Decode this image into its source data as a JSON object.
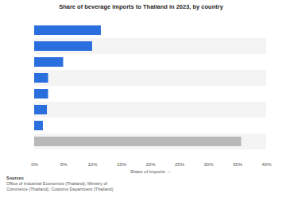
{
  "chart_data": {
    "type": "bar",
    "orientation": "horizontal",
    "title": "Share of beverage imports to Thailand in 2023, by country",
    "categories": [
      null,
      null,
      null,
      null,
      null,
      null,
      null,
      null
    ],
    "values": [
      11.5,
      10,
      5,
      2.4,
      2.4,
      2.2,
      1.5,
      35.7
    ],
    "colors": [
      "#2b6fde",
      "#2b6fde",
      "#2b6fde",
      "#2b6fde",
      "#2b6fde",
      "#2b6fde",
      "#2b6fde",
      "#b9b9b9"
    ],
    "xlabel": "Share of imports",
    "xlim": [
      0,
      40
    ],
    "xticks": [
      {
        "value": 0,
        "label": "0%"
      },
      {
        "value": 5,
        "label": "5%"
      },
      {
        "value": 10,
        "label": "10%"
      },
      {
        "value": 15,
        "label": "15%"
      },
      {
        "value": 20,
        "label": "20%"
      },
      {
        "value": 25,
        "label": "25%"
      },
      {
        "value": 30,
        "label": "30%"
      },
      {
        "value": 35,
        "label": "35%"
      },
      {
        "value": 40,
        "label": "40%"
      }
    ],
    "grid": false,
    "source_heading": "Sources",
    "source": "Office of Industrial Economics (Thailand); Ministry of Commerce (Thailand); Customs Department (Thailand)"
  }
}
